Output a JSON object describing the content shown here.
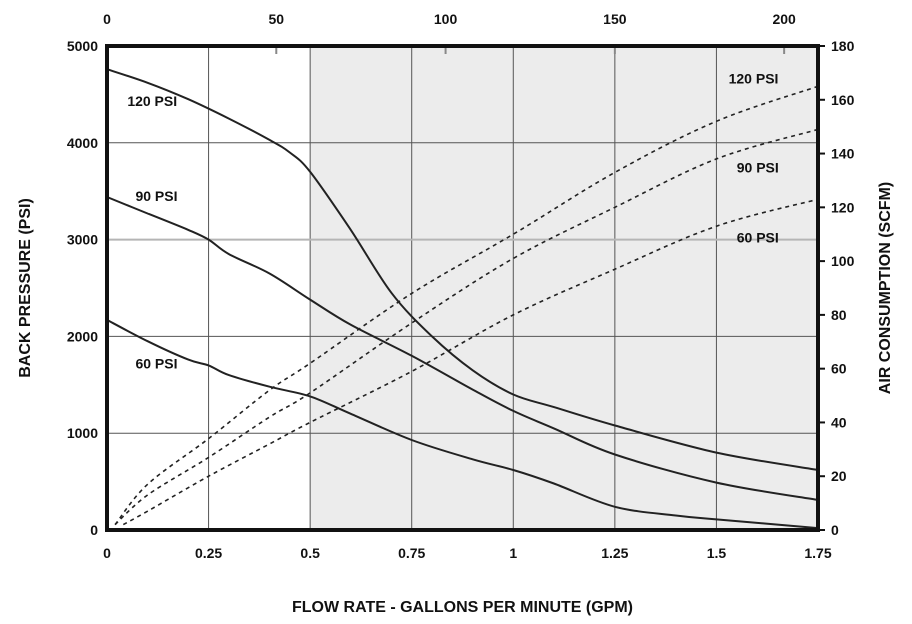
{
  "chart_data": {
    "type": "line",
    "title": "",
    "xlabel": "FLOW RATE - GALLONS PER MINUTE (GPM)",
    "ylabel": "BACK PRESSURE  (PSI)",
    "y2label": "AIR CONSUMPTION  (SCFM)",
    "xlim": [
      0,
      1.75
    ],
    "ylim": [
      0,
      5000
    ],
    "x2lim": [
      0,
      210
    ],
    "y2lim": [
      0,
      180
    ],
    "x_ticks": [
      "0",
      "0.25",
      "0.5",
      "0.75",
      "1",
      "1.25",
      "1.5",
      "1.75"
    ],
    "y_ticks": [
      "0",
      "1000",
      "2000",
      "3000",
      "4000",
      "5000"
    ],
    "x2_ticks": [
      "0",
      "50",
      "100",
      "150",
      "200"
    ],
    "y2_ticks": [
      "0",
      "20",
      "40",
      "60",
      "80",
      "100",
      "120",
      "140",
      "160",
      "180"
    ],
    "grid": true,
    "shaded_region_x": [
      0.5,
      1.75
    ],
    "colors": {
      "line": "#222222",
      "grid": "#555555",
      "shade": "#ececec",
      "frame": "#111111"
    },
    "back_pressure_series": [
      {
        "name": "120 PSI",
        "label_pos": [
          0.05,
          4380
        ],
        "points": [
          [
            0,
            4760
          ],
          [
            0.1,
            4620
          ],
          [
            0.2,
            4450
          ],
          [
            0.3,
            4250
          ],
          [
            0.4,
            4030
          ],
          [
            0.45,
            3900
          ],
          [
            0.5,
            3700
          ],
          [
            0.6,
            3100
          ],
          [
            0.7,
            2450
          ],
          [
            0.8,
            2000
          ],
          [
            0.9,
            1650
          ],
          [
            1.0,
            1400
          ],
          [
            1.1,
            1270
          ],
          [
            1.25,
            1080
          ],
          [
            1.5,
            800
          ],
          [
            1.75,
            620
          ]
        ]
      },
      {
        "name": "90 PSI",
        "label_pos": [
          0.07,
          3400
        ],
        "points": [
          [
            0,
            3440
          ],
          [
            0.1,
            3270
          ],
          [
            0.2,
            3100
          ],
          [
            0.25,
            3000
          ],
          [
            0.3,
            2850
          ],
          [
            0.4,
            2650
          ],
          [
            0.5,
            2380
          ],
          [
            0.6,
            2120
          ],
          [
            0.75,
            1800
          ],
          [
            0.9,
            1450
          ],
          [
            1.0,
            1230
          ],
          [
            1.1,
            1050
          ],
          [
            1.25,
            780
          ],
          [
            1.5,
            490
          ],
          [
            1.75,
            310
          ]
        ]
      },
      {
        "name": "60 PSI",
        "label_pos": [
          0.07,
          1670
        ],
        "points": [
          [
            0,
            2170
          ],
          [
            0.1,
            1950
          ],
          [
            0.2,
            1760
          ],
          [
            0.25,
            1700
          ],
          [
            0.3,
            1600
          ],
          [
            0.4,
            1480
          ],
          [
            0.5,
            1380
          ],
          [
            0.6,
            1200
          ],
          [
            0.75,
            930
          ],
          [
            0.9,
            730
          ],
          [
            1.0,
            620
          ],
          [
            1.1,
            480
          ],
          [
            1.25,
            240
          ],
          [
            1.4,
            150
          ],
          [
            1.5,
            110
          ],
          [
            1.75,
            20
          ]
        ]
      }
    ],
    "air_consumption_series": [
      {
        "name": "120 PSI",
        "label_pos": [
          1.53,
          166
        ],
        "points": [
          [
            0.02,
            2
          ],
          [
            0.1,
            17
          ],
          [
            0.25,
            34
          ],
          [
            0.4,
            52
          ],
          [
            0.5,
            62
          ],
          [
            0.75,
            88
          ],
          [
            1.0,
            110
          ],
          [
            1.25,
            133
          ],
          [
            1.5,
            152
          ],
          [
            1.75,
            165
          ]
        ]
      },
      {
        "name": "90 PSI",
        "label_pos": [
          1.55,
          133
        ],
        "points": [
          [
            0.02,
            2
          ],
          [
            0.1,
            13
          ],
          [
            0.25,
            27
          ],
          [
            0.4,
            42
          ],
          [
            0.5,
            51
          ],
          [
            0.75,
            77
          ],
          [
            1.0,
            101
          ],
          [
            1.25,
            120
          ],
          [
            1.5,
            138
          ],
          [
            1.75,
            149
          ]
        ]
      },
      {
        "name": "60 PSI",
        "label_pos": [
          1.55,
          107
        ],
        "points": [
          [
            0.04,
            2
          ],
          [
            0.1,
            7
          ],
          [
            0.25,
            20
          ],
          [
            0.4,
            32
          ],
          [
            0.5,
            40
          ],
          [
            0.75,
            59
          ],
          [
            1.0,
            80
          ],
          [
            1.25,
            97
          ],
          [
            1.5,
            113
          ],
          [
            1.75,
            123
          ]
        ]
      }
    ]
  }
}
